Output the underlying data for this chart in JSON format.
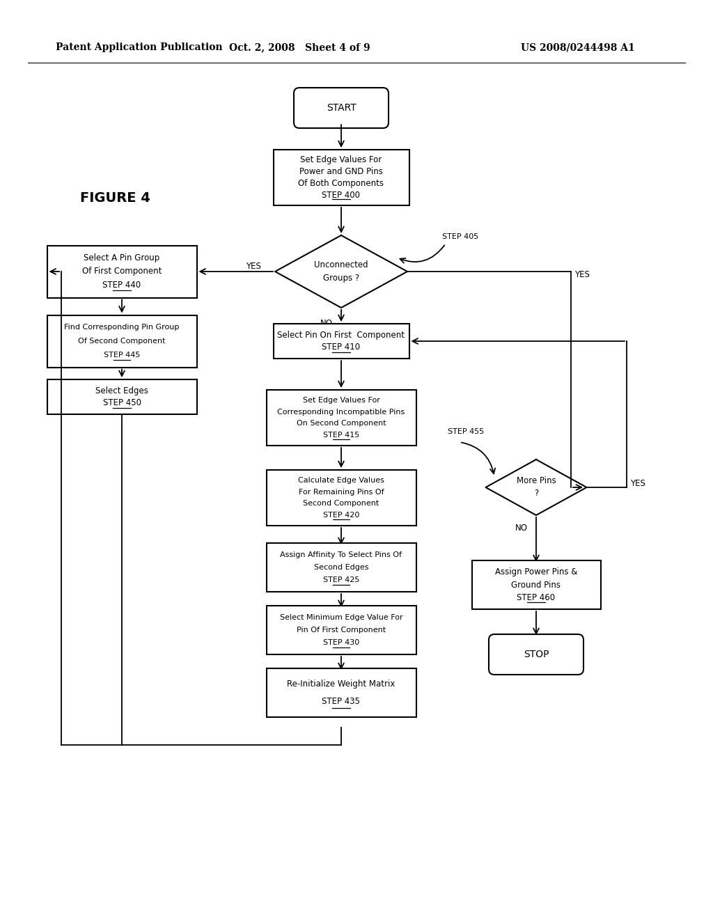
{
  "bg_color": "#ffffff",
  "header_left": "Patent Application Publication",
  "header_mid": "Oct. 2, 2008   Sheet 4 of 9",
  "header_right": "US 2008/0244498 A1",
  "figure_label": "FIGURE 4"
}
